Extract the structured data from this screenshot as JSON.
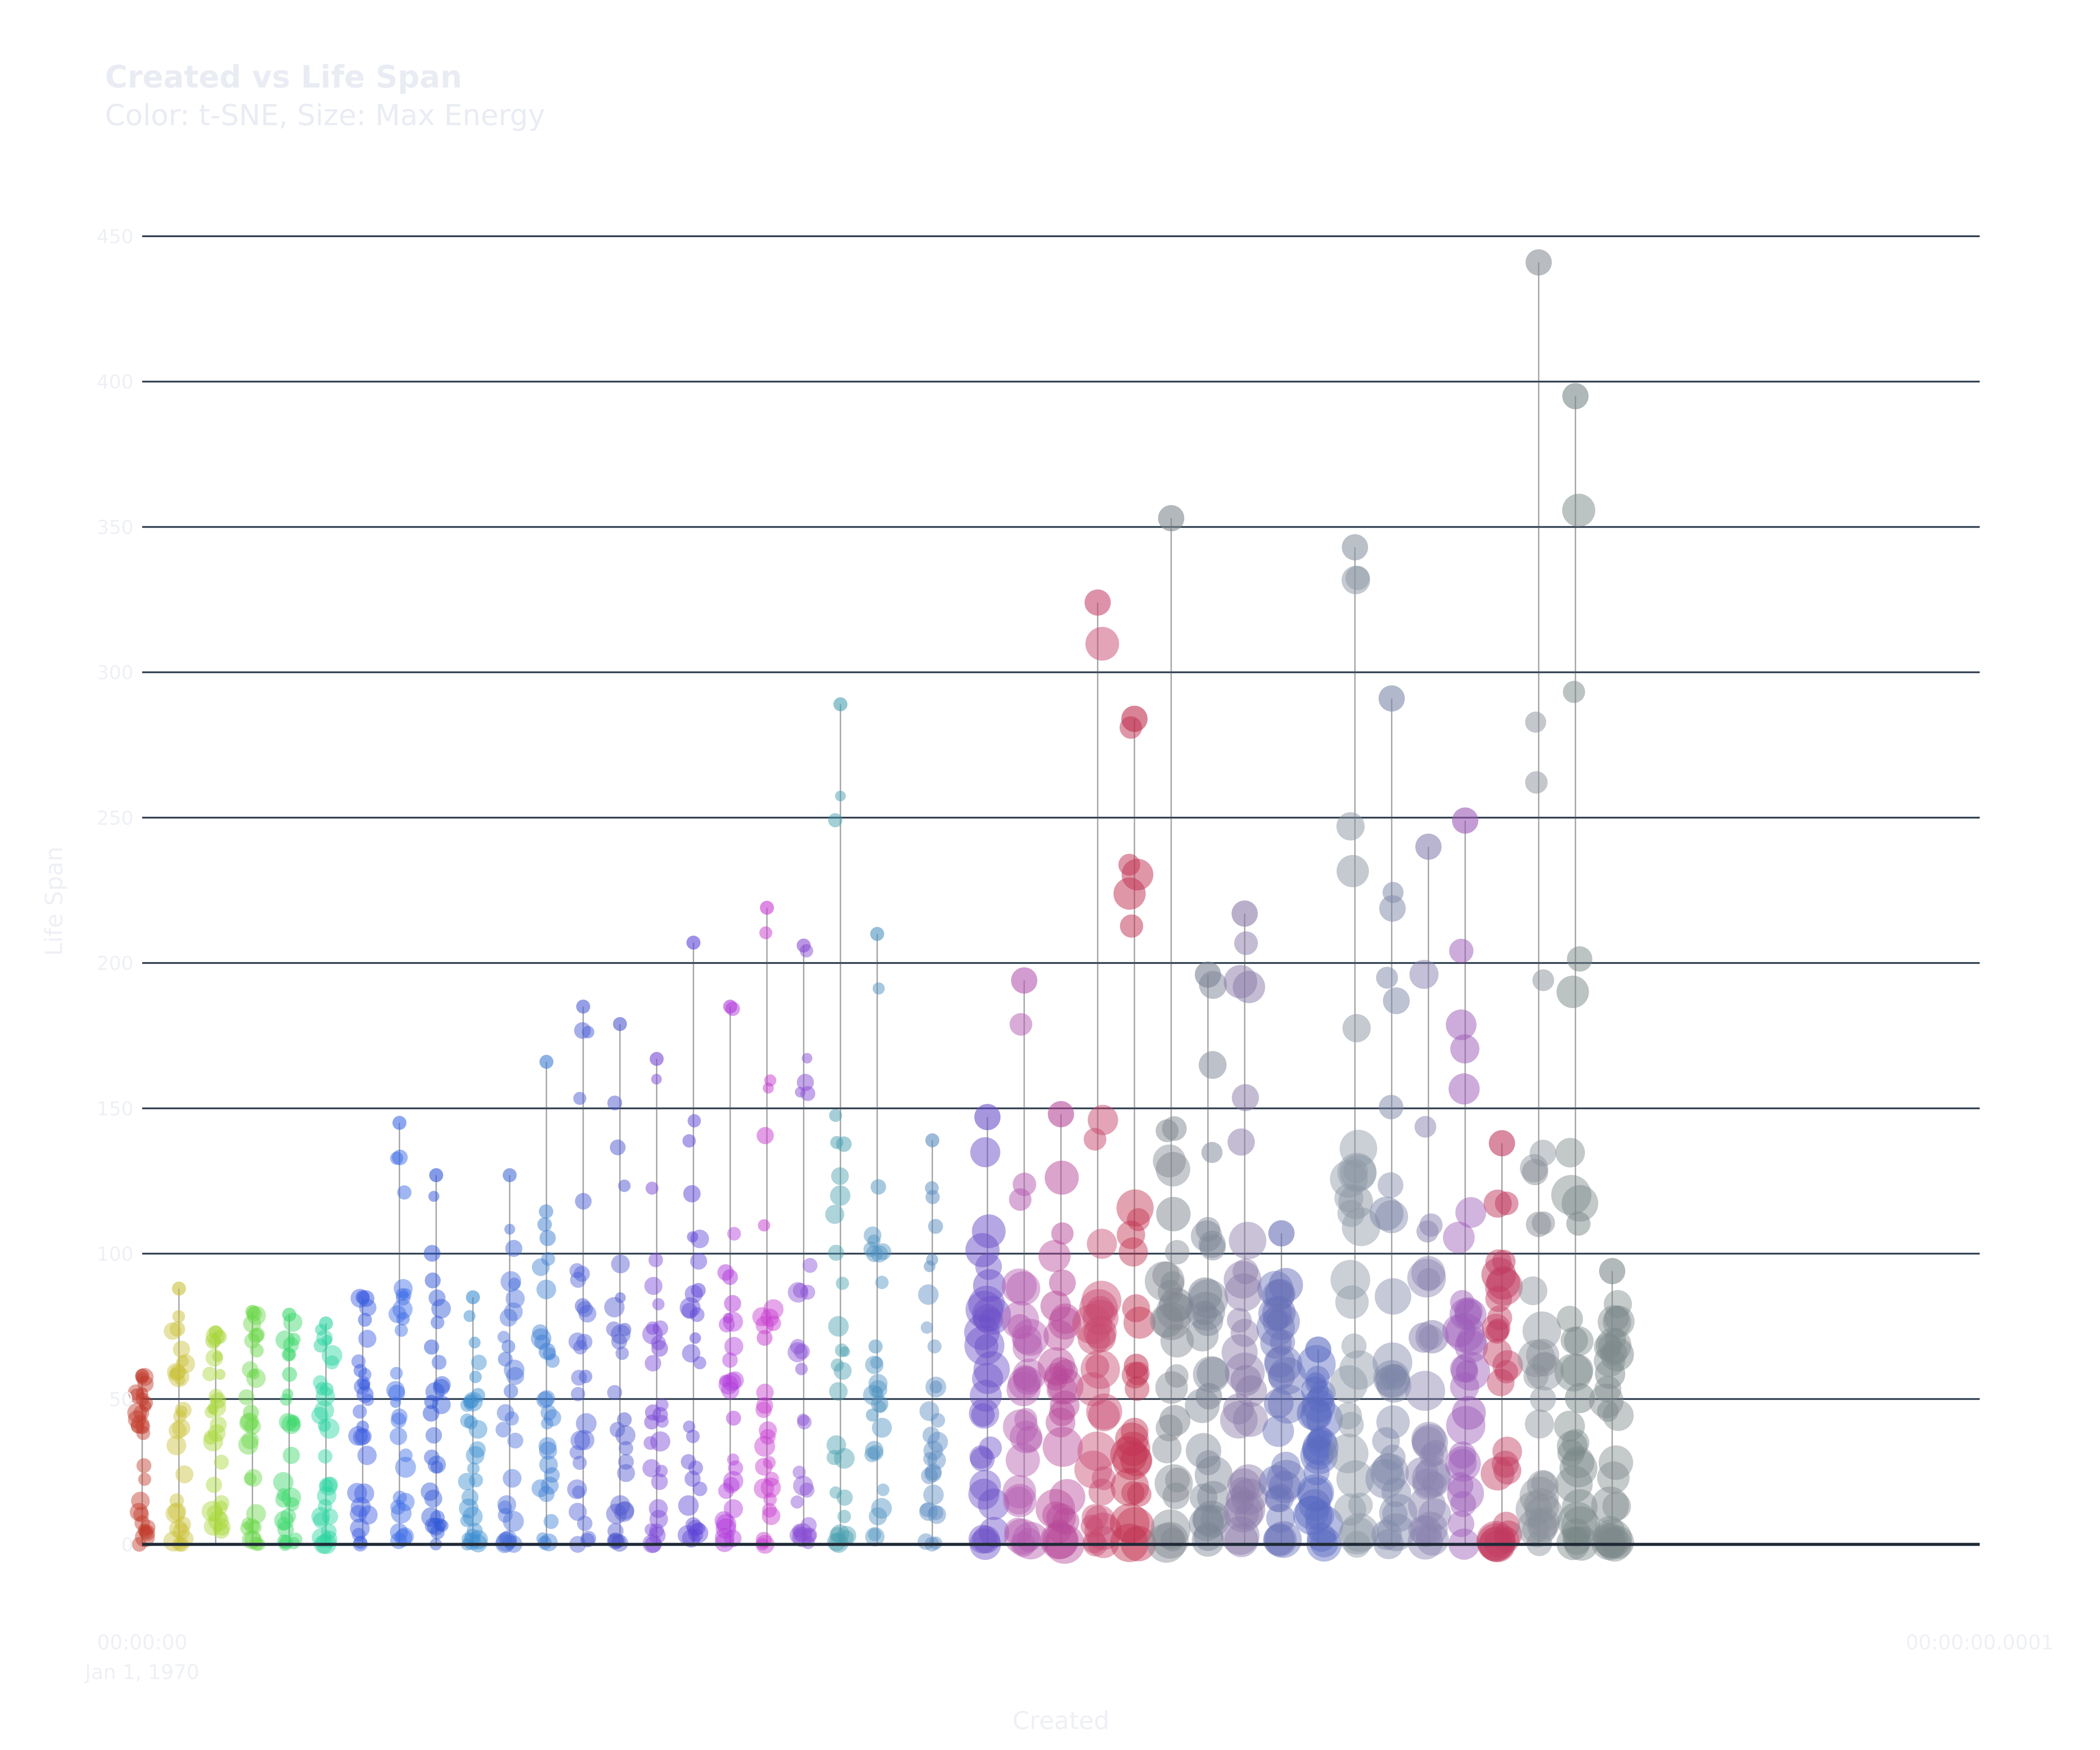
{
  "chart_data": {
    "type": "scatter",
    "title": "Created vs Life Span",
    "subtitle": "Color: t-SNE, Size: Max Energy",
    "xlabel": "Created",
    "ylabel": "Life Span",
    "ylim": [
      0,
      450
    ],
    "yticks": [
      "0",
      "50",
      "100",
      "150",
      "200",
      "250",
      "300",
      "350",
      "400",
      "450"
    ],
    "xticks": [
      {
        "label": "00:00:00",
        "sublabel": "Jan 1, 1970"
      },
      {
        "label": "00:00:00.0001",
        "sublabel": ""
      }
    ],
    "grid": true,
    "legend": "none",
    "colors": {
      "grid": "#2e3d4f",
      "text": "#eef0f5",
      "axis": "#1f2a37"
    },
    "columns": [
      {
        "x": 0.0,
        "max": 58,
        "color": "#c0392b"
      },
      {
        "x": 0.02,
        "max": 88,
        "color": "#c9c23a"
      },
      {
        "x": 0.04,
        "max": 73,
        "color": "#a8d63a"
      },
      {
        "x": 0.06,
        "max": 80,
        "color": "#6bd84a"
      },
      {
        "x": 0.08,
        "max": 79,
        "color": "#3cd86a"
      },
      {
        "x": 0.1,
        "max": 76,
        "color": "#2bd4a0"
      },
      {
        "x": 0.12,
        "max": 85,
        "color": "#3a5ce0"
      },
      {
        "x": 0.14,
        "max": 145,
        "color": "#3f6de6"
      },
      {
        "x": 0.16,
        "max": 127,
        "color": "#2f56d8"
      },
      {
        "x": 0.18,
        "max": 85,
        "color": "#3c8ed0"
      },
      {
        "x": 0.2,
        "max": 127,
        "color": "#4a6fd9"
      },
      {
        "x": 0.22,
        "max": 166,
        "color": "#3f7fd4"
      },
      {
        "x": 0.24,
        "max": 185,
        "color": "#4d5fd6"
      },
      {
        "x": 0.26,
        "max": 179,
        "color": "#5059cf"
      },
      {
        "x": 0.28,
        "max": 167,
        "color": "#7a48d6"
      },
      {
        "x": 0.3,
        "max": 207,
        "color": "#5d44d8"
      },
      {
        "x": 0.32,
        "max": 185,
        "color": "#b23cdc"
      },
      {
        "x": 0.34,
        "max": 219,
        "color": "#c83bd0"
      },
      {
        "x": 0.36,
        "max": 206,
        "color": "#8a4fd4"
      },
      {
        "x": 0.38,
        "max": 289,
        "color": "#4aa0b0"
      },
      {
        "x": 0.4,
        "max": 210,
        "color": "#4f93c0"
      },
      {
        "x": 0.43,
        "max": 139,
        "color": "#5a8cc0"
      },
      {
        "x": 0.46,
        "max": 147,
        "color": "#6b50c8"
      },
      {
        "x": 0.48,
        "max": 194,
        "color": "#b45ab0"
      },
      {
        "x": 0.5,
        "max": 148,
        "color": "#b84a9a"
      },
      {
        "x": 0.52,
        "max": 324,
        "color": "#c84a70"
      },
      {
        "x": 0.54,
        "max": 284,
        "color": "#c03050"
      },
      {
        "x": 0.56,
        "max": 353,
        "color": "#808890"
      },
      {
        "x": 0.58,
        "max": 196,
        "color": "#7c8494"
      },
      {
        "x": 0.6,
        "max": 217,
        "color": "#8a7aa8"
      },
      {
        "x": 0.62,
        "max": 107,
        "color": "#6870b8"
      },
      {
        "x": 0.64,
        "max": 67,
        "color": "#5a6ac0"
      },
      {
        "x": 0.66,
        "max": 343,
        "color": "#8c96a4"
      },
      {
        "x": 0.68,
        "max": 291,
        "color": "#7e88a8"
      },
      {
        "x": 0.7,
        "max": 240,
        "color": "#8a82b0"
      },
      {
        "x": 0.72,
        "max": 249,
        "color": "#9c5ab8"
      },
      {
        "x": 0.74,
        "max": 138,
        "color": "#c03a60"
      },
      {
        "x": 0.76,
        "max": 441,
        "color": "#8a9098"
      },
      {
        "x": 0.78,
        "max": 395,
        "color": "#7a8888"
      },
      {
        "x": 0.8,
        "max": 94,
        "color": "#7e8a8c"
      }
    ]
  }
}
